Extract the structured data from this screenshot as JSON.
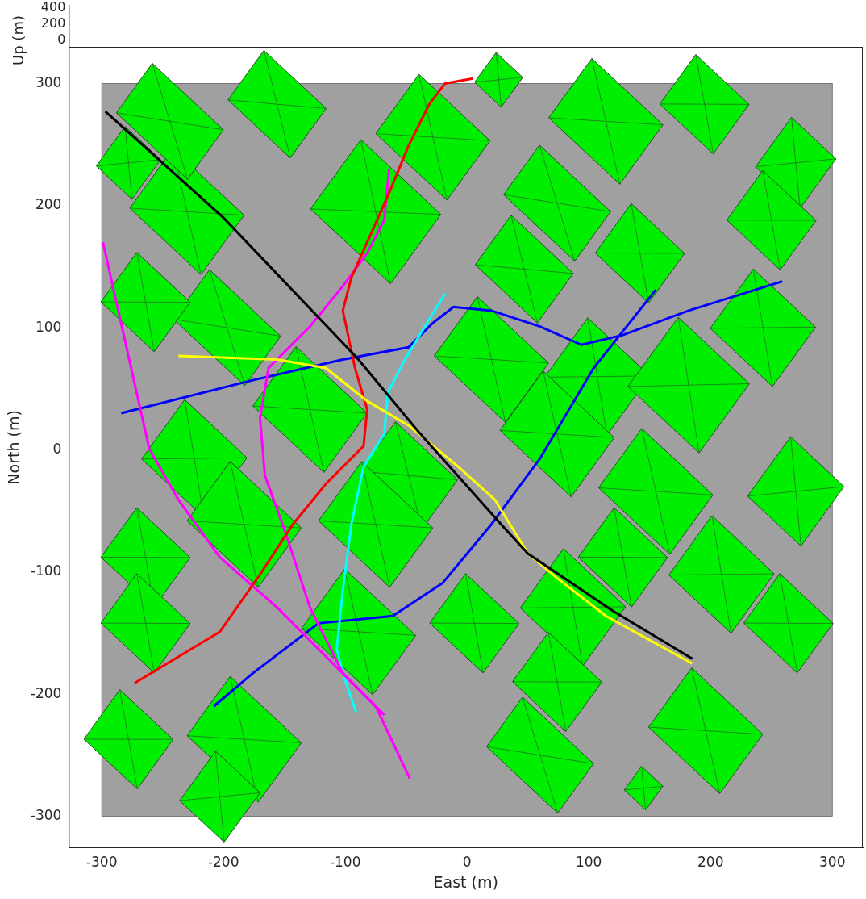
{
  "chart_data": {
    "type": "line",
    "xlabel": "East (m)",
    "ylabel": "North (m)",
    "zlabel": "Up (m)",
    "zticks": [
      0,
      200,
      400
    ],
    "xlim": [
      -327,
      325
    ],
    "ylim": [
      -326,
      330
    ],
    "xticks": [
      -300,
      -200,
      -100,
      0,
      100,
      200,
      300
    ],
    "yticks": [
      -300,
      -200,
      -100,
      0,
      100,
      200,
      300
    ],
    "grid": false,
    "ground": [
      -300,
      300,
      -300,
      300
    ],
    "buildings": [
      [
        -75,
        195,
        45,
        35
      ],
      [
        -156,
        283,
        35,
        25
      ],
      [
        -28,
        256,
        40,
        30
      ],
      [
        26,
        303,
        15,
        15
      ],
      [
        114,
        269,
        40,
        30
      ],
      [
        195,
        283,
        30,
        25
      ],
      [
        270,
        235,
        25,
        25
      ],
      [
        250,
        188,
        30,
        25
      ],
      [
        74,
        202,
        40,
        25
      ],
      [
        142,
        161,
        30,
        25
      ],
      [
        47,
        148,
        35,
        25
      ],
      [
        20,
        74,
        40,
        30
      ],
      [
        107,
        60,
        35,
        30
      ],
      [
        182,
        53,
        40,
        35
      ],
      [
        243,
        100,
        35,
        30
      ],
      [
        270,
        -34,
        30,
        30
      ],
      [
        155,
        -34,
        40,
        30
      ],
      [
        74,
        13,
        40,
        30
      ],
      [
        -48,
        -21,
        35,
        25
      ],
      [
        -129,
        33,
        40,
        30
      ],
      [
        -224,
        -7,
        35,
        30
      ],
      [
        -197,
        100,
        40,
        25
      ],
      [
        -264,
        121,
        30,
        25
      ],
      [
        -230,
        195,
        40,
        30
      ],
      [
        -278,
        235,
        20,
        20
      ],
      [
        -244,
        269,
        40,
        25
      ],
      [
        -75,
        -61,
        40,
        30
      ],
      [
        -183,
        -61,
        40,
        30
      ],
      [
        -264,
        -88,
        30,
        25
      ],
      [
        -264,
        -142,
        30,
        25
      ],
      [
        -89,
        -149,
        40,
        30
      ],
      [
        6,
        -142,
        30,
        25
      ],
      [
        87,
        -129,
        35,
        30
      ],
      [
        128,
        -88,
        30,
        25
      ],
      [
        209,
        -102,
        35,
        30
      ],
      [
        264,
        -142,
        30,
        25
      ],
      [
        74,
        -190,
        30,
        25
      ],
      [
        196,
        -230,
        40,
        30
      ],
      [
        -183,
        -237,
        40,
        30
      ],
      [
        -278,
        -237,
        30,
        25
      ],
      [
        -203,
        -284,
        25,
        25
      ],
      [
        60,
        -250,
        40,
        25
      ],
      [
        145,
        -277,
        12,
        12
      ]
    ],
    "series": [
      {
        "color": "#000000",
        "x": [
          -297,
          -200,
          -90,
          -40,
          28,
          50,
          120,
          185
        ],
        "values": [
          277,
          190,
          75,
          15,
          -61,
          -85,
          -132,
          -171
        ]
      },
      {
        "color": "#ffff00",
        "x": [
          -237,
          -156,
          -116,
          -82,
          -48,
          -7,
          23,
          50,
          74,
          114,
          185
        ],
        "values": [
          77,
          74,
          67,
          40,
          20,
          -14,
          -41,
          -85,
          -105,
          -136,
          -175
        ]
      },
      {
        "color": "#ff0000",
        "x": [
          -273,
          -203,
          -170,
          -143,
          -116,
          -85,
          -82,
          -92,
          -102,
          -95,
          -65,
          -48,
          -31,
          -18,
          5
        ],
        "values": [
          -191,
          -149,
          -102,
          -61,
          -28,
          3,
          33,
          67,
          114,
          141,
          208,
          249,
          283,
          300,
          304
        ]
      },
      {
        "color": "#ff00ff",
        "x": [
          -299,
          -261,
          -237,
          -203,
          -156,
          -116,
          -75,
          -47
        ],
        "values": [
          170,
          1,
          -41,
          -88,
          -129,
          -169,
          -210,
          -269
        ]
      },
      {
        "color": "#ff00ff",
        "x": [
          -64,
          -68,
          -82,
          -102,
          -129,
          -163,
          -170,
          -166,
          -149,
          -129,
          -102,
          -68
        ],
        "values": [
          230,
          188,
          161,
          134,
          101,
          67,
          26,
          -21,
          -68,
          -129,
          -183,
          -217
        ]
      },
      {
        "color": "#00ffff",
        "x": [
          -18,
          -31,
          -51,
          -65,
          -68,
          -85,
          -95,
          -102,
          -107,
          -102,
          -91
        ],
        "values": [
          128,
          107,
          74,
          47,
          13,
          -14,
          -61,
          -115,
          -163,
          -183,
          -215
        ]
      },
      {
        "color": "#0000ff",
        "x": [
          -284,
          -176,
          -102,
          -48,
          -28,
          -11,
          20,
          60,
          94,
          128,
          182,
          259
        ],
        "values": [
          30,
          57,
          74,
          84,
          104,
          117,
          114,
          101,
          86,
          94,
          114,
          138
        ]
      },
      {
        "color": "#0000ff",
        "x": [
          -208,
          -176,
          -122,
          -61,
          -20,
          20,
          60,
          104,
          155
        ],
        "values": [
          -210,
          -183,
          -142,
          -136,
          -109,
          -61,
          -7,
          67,
          131
        ]
      }
    ]
  }
}
